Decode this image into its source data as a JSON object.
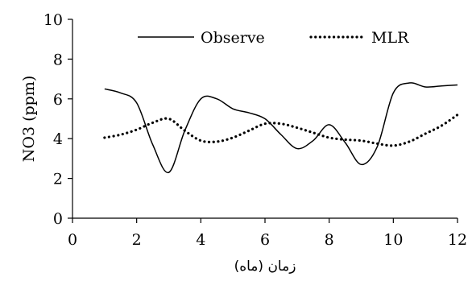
{
  "chart_data": {
    "type": "line",
    "title": "",
    "xlabel": "زمان (ماه)",
    "ylabel": "NO3 (ppm)",
    "xlim": [
      0,
      12
    ],
    "ylim": [
      0,
      10
    ],
    "xticks": [
      0,
      2,
      4,
      6,
      8,
      10,
      12
    ],
    "yticks": [
      0,
      2,
      4,
      6,
      8,
      10
    ],
    "grid": false,
    "legend_position": "top",
    "series": [
      {
        "name": "Observe",
        "style": "solid",
        "color": "#000000",
        "x": [
          1,
          1.5,
          2,
          2.5,
          3,
          3.5,
          4,
          4.5,
          5,
          5.5,
          6,
          6.5,
          7,
          7.5,
          8,
          8.5,
          9,
          9.5,
          10,
          10.5,
          11,
          11.5,
          12
        ],
        "y": [
          6.5,
          6.3,
          5.8,
          3.7,
          2.3,
          4.4,
          6.0,
          6.0,
          5.5,
          5.3,
          5.0,
          4.2,
          3.5,
          3.9,
          4.7,
          3.8,
          2.7,
          3.6,
          6.3,
          6.8,
          6.6,
          6.65,
          6.7
        ]
      },
      {
        "name": "MLR",
        "style": "dotted",
        "color": "#000000",
        "x": [
          1,
          1.5,
          2,
          2.5,
          3,
          3.5,
          4,
          4.5,
          5,
          5.5,
          6,
          6.5,
          7,
          7.5,
          8,
          8.5,
          9,
          9.5,
          10,
          10.5,
          11,
          11.5,
          12
        ],
        "y": [
          4.05,
          4.2,
          4.45,
          4.8,
          5.0,
          4.4,
          3.9,
          3.85,
          4.05,
          4.4,
          4.75,
          4.75,
          4.55,
          4.3,
          4.05,
          3.95,
          3.9,
          3.75,
          3.65,
          3.85,
          4.25,
          4.65,
          5.2
        ]
      }
    ]
  }
}
